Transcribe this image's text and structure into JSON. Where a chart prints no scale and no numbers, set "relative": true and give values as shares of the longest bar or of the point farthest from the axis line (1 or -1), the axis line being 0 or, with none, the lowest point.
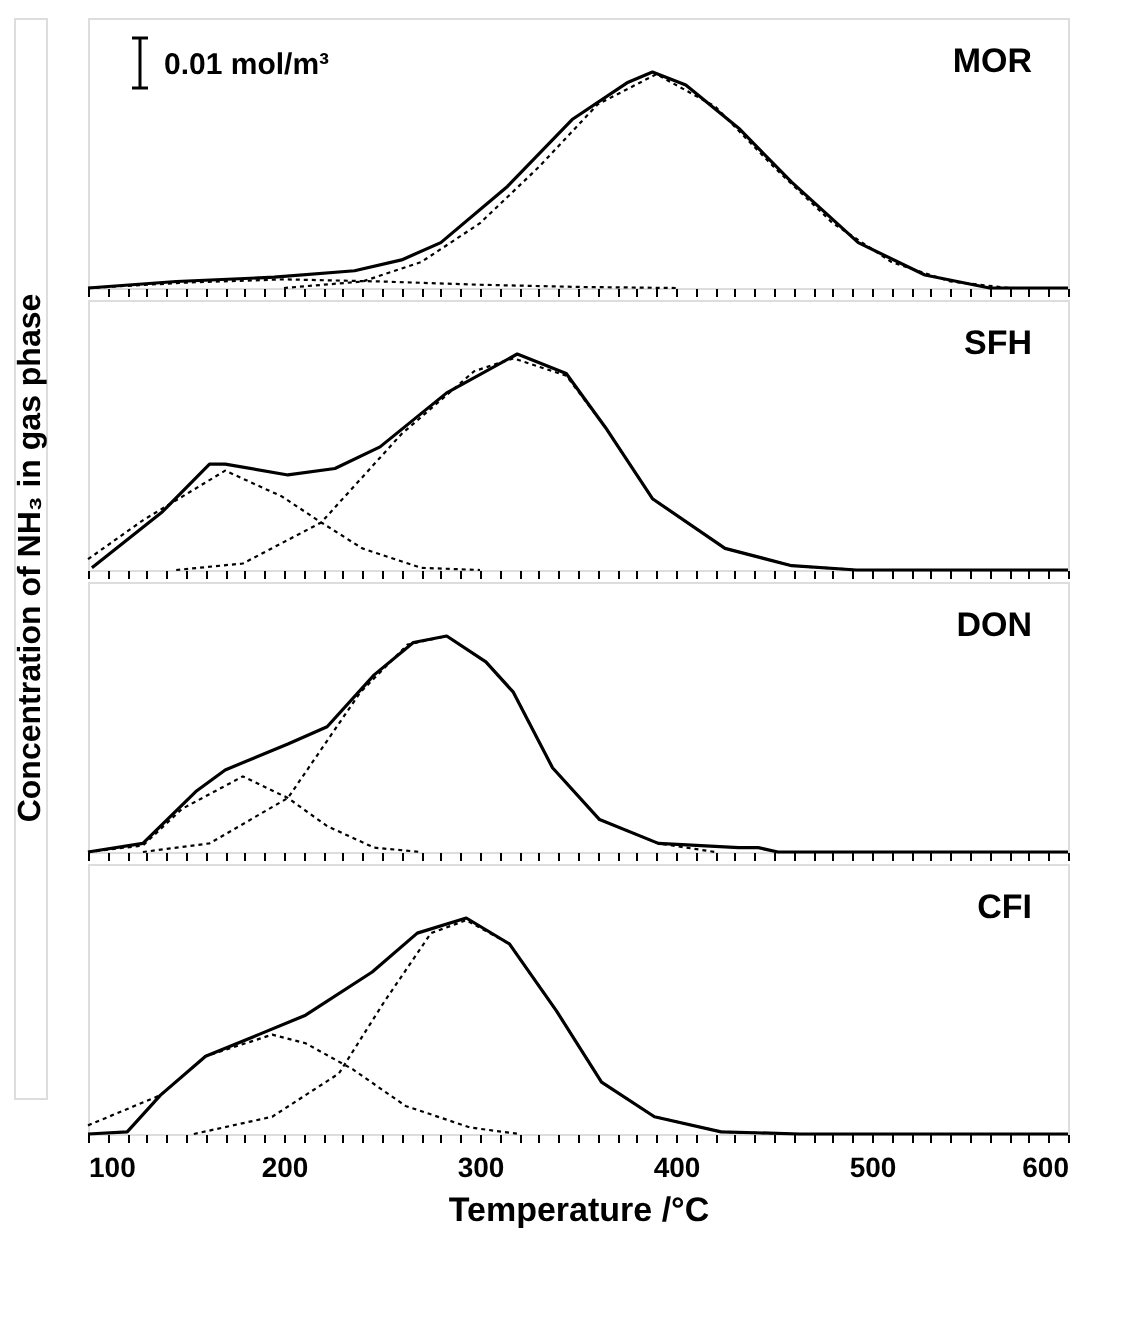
{
  "chart_data": [
    {
      "type": "line",
      "title": "MOR",
      "relative": true,
      "ylabel": "Concentration of NH₃ in gas phase",
      "annotations": [
        "0.01 mol/m³"
      ],
      "xlim": [
        100,
        600
      ],
      "tick_labels": false,
      "xticks": [
        100,
        {
          "value": 110,
          "label": null
        },
        {
          "value": 120,
          "label": null
        },
        {
          "value": 130,
          "label": null
        },
        {
          "value": 140,
          "label": null
        },
        {
          "value": 150,
          "label": null
        },
        {
          "value": 160,
          "label": null
        },
        {
          "value": 170,
          "label": null
        },
        {
          "value": 180,
          "label": null
        },
        {
          "value": 190,
          "label": null
        },
        200,
        {
          "value": 210,
          "label": null
        },
        {
          "value": 220,
          "label": null
        },
        {
          "value": 230,
          "label": null
        },
        {
          "value": 240,
          "label": null
        },
        {
          "value": 250,
          "label": null
        },
        {
          "value": 260,
          "label": null
        },
        {
          "value": 270,
          "label": null
        },
        {
          "value": 280,
          "label": null
        },
        {
          "value": 290,
          "label": null
        },
        300,
        {
          "value": 310,
          "label": null
        },
        {
          "value": 320,
          "label": null
        },
        {
          "value": 330,
          "label": null
        },
        {
          "value": 340,
          "label": null
        },
        {
          "value": 350,
          "label": null
        },
        {
          "value": 360,
          "label": null
        },
        {
          "value": 370,
          "label": null
        },
        {
          "value": 380,
          "label": null
        },
        {
          "value": 390,
          "label": null
        },
        400,
        {
          "value": 410,
          "label": null
        },
        {
          "value": 420,
          "label": null
        },
        {
          "value": 430,
          "label": null
        },
        {
          "value": 440,
          "label": null
        },
        {
          "value": 450,
          "label": null
        },
        {
          "value": 460,
          "label": null
        },
        {
          "value": 470,
          "label": null
        },
        {
          "value": 480,
          "label": null
        },
        {
          "value": 490,
          "label": null
        },
        500,
        {
          "value": 510,
          "label": null
        },
        {
          "value": 520,
          "label": null
        },
        {
          "value": 530,
          "label": null
        },
        {
          "value": 540,
          "label": null
        },
        {
          "value": 550,
          "label": null
        },
        {
          "value": 560,
          "label": null
        },
        {
          "value": 570,
          "label": null
        },
        {
          "value": 580,
          "label": null
        },
        {
          "value": 590,
          "label": null
        },
        600
      ],
      "series": [
        {
          "color": "#000000",
          "line_style": "solid",
          "x": [
            100,
            145,
            195,
            236,
            260,
            280,
            314,
            347,
            375,
            388,
            405,
            432,
            459,
            493,
            527,
            560,
            600
          ],
          "values": [
            0,
            0.03,
            0.05,
            0.08,
            0.13,
            0.21,
            0.47,
            0.78,
            0.95,
            1.0,
            0.94,
            0.74,
            0.49,
            0.21,
            0.06,
            0,
            0
          ]
        },
        {
          "color": "#000000",
          "line_style": "dotted",
          "x": [
            100,
            150,
            200,
            250,
            300,
            350,
            400
          ],
          "values": [
            0,
            0.025,
            0.04,
            0.03,
            0.015,
            0.005,
            0
          ]
        },
        {
          "color": "#000000",
          "line_style": "dotted",
          "x": [
            200,
            240,
            270,
            300,
            330,
            360,
            390,
            420,
            450,
            480,
            510,
            540,
            570
          ],
          "values": [
            0,
            0.03,
            0.12,
            0.3,
            0.56,
            0.85,
            0.99,
            0.84,
            0.56,
            0.3,
            0.12,
            0.03,
            0
          ]
        }
      ]
    },
    {
      "type": "line",
      "title": "SFH",
      "relative": true,
      "xlim": [
        100,
        600
      ],
      "tick_labels": false,
      "xticks": [
        100,
        {
          "value": 110,
          "label": null
        },
        {
          "value": 120,
          "label": null
        },
        {
          "value": 130,
          "label": null
        },
        {
          "value": 140,
          "label": null
        },
        {
          "value": 150,
          "label": null
        },
        {
          "value": 160,
          "label": null
        },
        {
          "value": 170,
          "label": null
        },
        {
          "value": 180,
          "label": null
        },
        {
          "value": 190,
          "label": null
        },
        200,
        {
          "value": 210,
          "label": null
        },
        {
          "value": 220,
          "label": null
        },
        {
          "value": 230,
          "label": null
        },
        {
          "value": 240,
          "label": null
        },
        {
          "value": 250,
          "label": null
        },
        {
          "value": 260,
          "label": null
        },
        {
          "value": 270,
          "label": null
        },
        {
          "value": 280,
          "label": null
        },
        {
          "value": 290,
          "label": null
        },
        300,
        {
          "value": 310,
          "label": null
        },
        {
          "value": 320,
          "label": null
        },
        {
          "value": 330,
          "label": null
        },
        {
          "value": 340,
          "label": null
        },
        {
          "value": 350,
          "label": null
        },
        {
          "value": 360,
          "label": null
        },
        {
          "value": 370,
          "label": null
        },
        {
          "value": 380,
          "label": null
        },
        {
          "value": 390,
          "label": null
        },
        400,
        {
          "value": 410,
          "label": null
        },
        {
          "value": 420,
          "label": null
        },
        {
          "value": 430,
          "label": null
        },
        {
          "value": 440,
          "label": null
        },
        {
          "value": 450,
          "label": null
        },
        {
          "value": 460,
          "label": null
        },
        {
          "value": 470,
          "label": null
        },
        {
          "value": 480,
          "label": null
        },
        {
          "value": 490,
          "label": null
        },
        500,
        {
          "value": 510,
          "label": null
        },
        {
          "value": 520,
          "label": null
        },
        {
          "value": 530,
          "label": null
        },
        {
          "value": 540,
          "label": null
        },
        {
          "value": 550,
          "label": null
        },
        {
          "value": 560,
          "label": null
        },
        {
          "value": 570,
          "label": null
        },
        {
          "value": 580,
          "label": null
        },
        {
          "value": 590,
          "label": null
        },
        600
      ],
      "series": [
        {
          "color": "#000000",
          "line_style": "solid",
          "x": [
            102,
            138,
            162,
            170,
            202,
            226,
            249,
            283,
            319,
            344,
            364,
            388,
            425,
            459,
            492,
            600
          ],
          "values": [
            0.01,
            0.27,
            0.49,
            0.49,
            0.44,
            0.47,
            0.57,
            0.82,
            1.0,
            0.91,
            0.66,
            0.33,
            0.1,
            0.02,
            0,
            0
          ]
        },
        {
          "color": "#000000",
          "line_style": "dotted",
          "x": [
            100,
            128,
            170,
            199,
            219,
            240,
            270,
            300
          ],
          "values": [
            0.05,
            0.23,
            0.46,
            0.34,
            0.22,
            0.1,
            0.01,
            0
          ]
        },
        {
          "color": "#000000",
          "line_style": "dotted",
          "x": [
            145,
            179,
            219,
            260,
            297,
            317,
            344,
            364,
            388,
            425,
            459,
            492
          ],
          "values": [
            0,
            0.03,
            0.22,
            0.63,
            0.92,
            0.98,
            0.9,
            0.66,
            0.33,
            0.1,
            0.02,
            0
          ]
        }
      ]
    },
    {
      "type": "line",
      "title": "DON",
      "relative": true,
      "xlim": [
        100,
        600
      ],
      "tick_labels": false,
      "xticks": [
        100,
        {
          "value": 110,
          "label": null
        },
        {
          "value": 120,
          "label": null
        },
        {
          "value": 130,
          "label": null
        },
        {
          "value": 140,
          "label": null
        },
        {
          "value": 150,
          "label": null
        },
        {
          "value": 160,
          "label": null
        },
        {
          "value": 170,
          "label": null
        },
        {
          "value": 180,
          "label": null
        },
        {
          "value": 190,
          "label": null
        },
        200,
        {
          "value": 210,
          "label": null
        },
        {
          "value": 220,
          "label": null
        },
        {
          "value": 230,
          "label": null
        },
        {
          "value": 240,
          "label": null
        },
        {
          "value": 250,
          "label": null
        },
        {
          "value": 260,
          "label": null
        },
        {
          "value": 270,
          "label": null
        },
        {
          "value": 280,
          "label": null
        },
        {
          "value": 290,
          "label": null
        },
        300,
        {
          "value": 310,
          "label": null
        },
        {
          "value": 320,
          "label": null
        },
        {
          "value": 330,
          "label": null
        },
        {
          "value": 340,
          "label": null
        },
        {
          "value": 350,
          "label": null
        },
        {
          "value": 360,
          "label": null
        },
        {
          "value": 370,
          "label": null
        },
        {
          "value": 380,
          "label": null
        },
        {
          "value": 390,
          "label": null
        },
        400,
        {
          "value": 410,
          "label": null
        },
        {
          "value": 420,
          "label": null
        },
        {
          "value": 430,
          "label": null
        },
        {
          "value": 440,
          "label": null
        },
        {
          "value": 450,
          "label": null
        },
        {
          "value": 460,
          "label": null
        },
        {
          "value": 470,
          "label": null
        },
        {
          "value": 480,
          "label": null
        },
        {
          "value": 490,
          "label": null
        },
        500,
        {
          "value": 510,
          "label": null
        },
        {
          "value": 520,
          "label": null
        },
        {
          "value": 530,
          "label": null
        },
        {
          "value": 540,
          "label": null
        },
        {
          "value": 550,
          "label": null
        },
        {
          "value": 560,
          "label": null
        },
        {
          "value": 570,
          "label": null
        },
        {
          "value": 580,
          "label": null
        },
        {
          "value": 590,
          "label": null
        },
        600
      ],
      "series": [
        {
          "color": "#000000",
          "line_style": "solid",
          "x": [
            100,
            128,
            155,
            170,
            202,
            222,
            246,
            266,
            283,
            303,
            317,
            337,
            361,
            391,
            432,
            442,
            452,
            600
          ],
          "values": [
            0,
            0.04,
            0.28,
            0.38,
            0.5,
            0.58,
            0.82,
            0.97,
            1.0,
            0.88,
            0.74,
            0.39,
            0.15,
            0.04,
            0.02,
            0.02,
            0,
            0
          ]
        },
        {
          "color": "#000000",
          "line_style": "dotted",
          "x": [
            100,
            128,
            148,
            179,
            202,
            222,
            246,
            270
          ],
          "values": [
            0,
            0.03,
            0.2,
            0.35,
            0.25,
            0.12,
            0.02,
            0
          ]
        },
        {
          "color": "#000000",
          "line_style": "dotted",
          "x": [
            128,
            162,
            202,
            239,
            263,
            283,
            303,
            317,
            337,
            361,
            391,
            420
          ],
          "values": [
            0,
            0.04,
            0.25,
            0.74,
            0.96,
            1.0,
            0.88,
            0.74,
            0.39,
            0.15,
            0.04,
            0
          ]
        }
      ]
    },
    {
      "type": "line",
      "title": "CFI",
      "relative": true,
      "xlabel": "Temperature /°C",
      "xlim": [
        100,
        600
      ],
      "tick_labels": "x",
      "xticks": [
        100,
        {
          "value": 110,
          "label": null
        },
        {
          "value": 120,
          "label": null
        },
        {
          "value": 130,
          "label": null
        },
        {
          "value": 140,
          "label": null
        },
        {
          "value": 150,
          "label": null
        },
        {
          "value": 160,
          "label": null
        },
        {
          "value": 170,
          "label": null
        },
        {
          "value": 180,
          "label": null
        },
        {
          "value": 190,
          "label": null
        },
        200,
        {
          "value": 210,
          "label": null
        },
        {
          "value": 220,
          "label": null
        },
        {
          "value": 230,
          "label": null
        },
        {
          "value": 240,
          "label": null
        },
        {
          "value": 250,
          "label": null
        },
        {
          "value": 260,
          "label": null
        },
        {
          "value": 270,
          "label": null
        },
        {
          "value": 280,
          "label": null
        },
        {
          "value": 290,
          "label": null
        },
        300,
        {
          "value": 310,
          "label": null
        },
        {
          "value": 320,
          "label": null
        },
        {
          "value": 330,
          "label": null
        },
        {
          "value": 340,
          "label": null
        },
        {
          "value": 350,
          "label": null
        },
        {
          "value": 360,
          "label": null
        },
        {
          "value": 370,
          "label": null
        },
        {
          "value": 380,
          "label": null
        },
        {
          "value": 390,
          "label": null
        },
        400,
        {
          "value": 410,
          "label": null
        },
        {
          "value": 420,
          "label": null
        },
        {
          "value": 430,
          "label": null
        },
        {
          "value": 440,
          "label": null
        },
        {
          "value": 450,
          "label": null
        },
        {
          "value": 460,
          "label": null
        },
        {
          "value": 470,
          "label": null
        },
        {
          "value": 480,
          "label": null
        },
        {
          "value": 490,
          "label": null
        },
        500,
        {
          "value": 510,
          "label": null
        },
        {
          "value": 520,
          "label": null
        },
        {
          "value": 530,
          "label": null
        },
        {
          "value": 540,
          "label": null
        },
        {
          "value": 550,
          "label": null
        },
        {
          "value": 560,
          "label": null
        },
        {
          "value": 570,
          "label": null
        },
        {
          "value": 580,
          "label": null
        },
        {
          "value": 590,
          "label": null
        },
        600
      ],
      "series": [
        {
          "color": "#000000",
          "line_style": "solid",
          "x": [
            100,
            120,
            137,
            160,
            187,
            211,
            245,
            268,
            293,
            315,
            339,
            362,
            389,
            423,
            463,
            600
          ],
          "values": [
            0,
            0.01,
            0.18,
            0.36,
            0.46,
            0.55,
            0.75,
            0.93,
            1.0,
            0.88,
            0.57,
            0.24,
            0.08,
            0.01,
            0,
            0
          ]
        },
        {
          "color": "#000000",
          "line_style": "dotted",
          "x": [
            100,
            137,
            160,
            194,
            211,
            235,
            262,
            295,
            320
          ],
          "values": [
            0.04,
            0.18,
            0.36,
            0.46,
            0.42,
            0.3,
            0.13,
            0.03,
            0
          ]
        },
        {
          "color": "#000000",
          "line_style": "dotted",
          "x": [
            154,
            194,
            228,
            251,
            275,
            293,
            315,
            339,
            362,
            389,
            423,
            460
          ],
          "values": [
            0,
            0.08,
            0.28,
            0.61,
            0.93,
            0.99,
            0.88,
            0.57,
            0.24,
            0.08,
            0.01,
            0
          ]
        }
      ]
    }
  ]
}
